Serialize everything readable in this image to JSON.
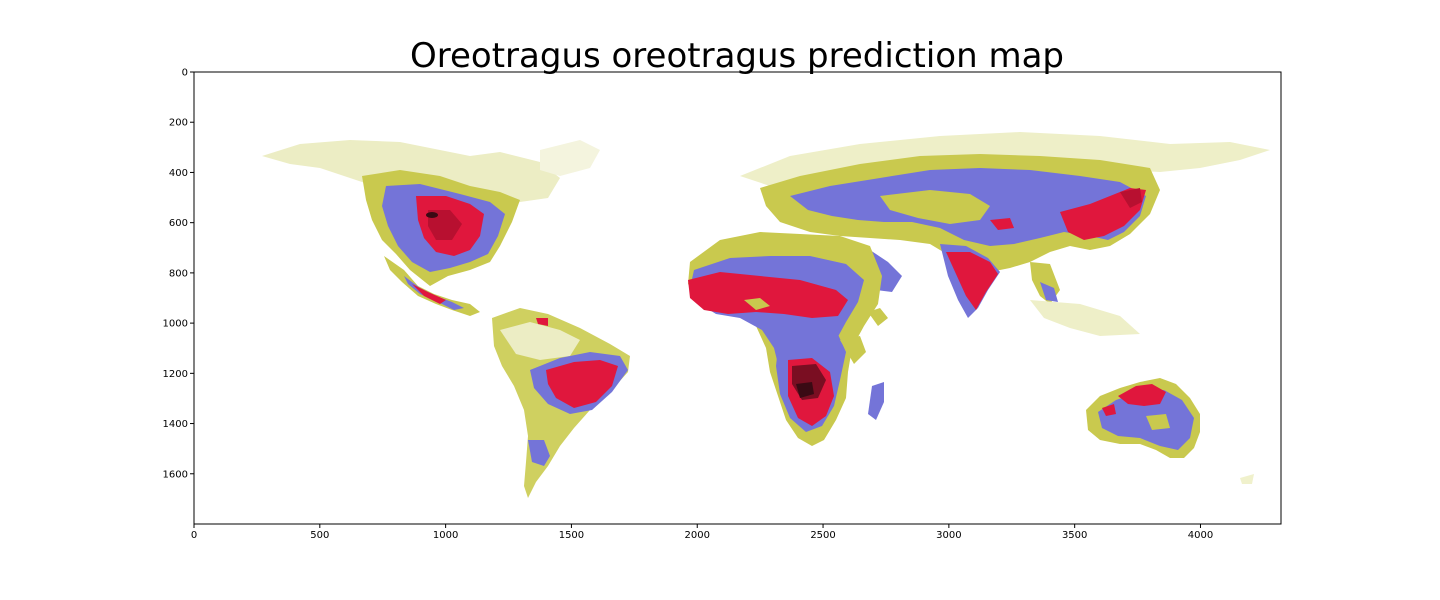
{
  "figure": {
    "title": "Oreotragus oreotragus prediction map"
  },
  "axes": {
    "xlim": [
      0,
      4320
    ],
    "ylim": [
      1800,
      0
    ],
    "x_ticks": [
      0,
      500,
      1000,
      1500,
      2000,
      2500,
      3000,
      3500,
      4000
    ],
    "x_tick_labels": [
      "0",
      "500",
      "1000",
      "1500",
      "2000",
      "2500",
      "3000",
      "3500",
      "4000"
    ],
    "y_ticks": [
      0,
      200,
      400,
      600,
      800,
      1000,
      1200,
      1400,
      1600
    ],
    "y_tick_labels": [
      "0",
      "200",
      "400",
      "600",
      "800",
      "1000",
      "1200",
      "1400",
      "1600"
    ]
  },
  "map": {
    "type": "raster prediction map",
    "colors": {
      "low": "#c8c832",
      "mid": "#6b6bd8",
      "high": "#e0103a",
      "peak": "#5a0a1a"
    }
  }
}
